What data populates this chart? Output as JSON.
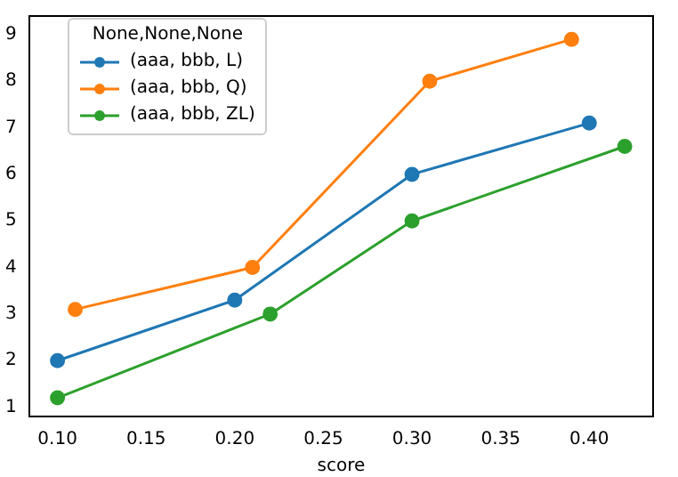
{
  "chart_data": {
    "type": "line",
    "xlabel": "score",
    "legend_title": "None,None,None",
    "legend": "top left",
    "marker": "circle",
    "grid": false,
    "xlim": [
      0.084,
      0.436
    ],
    "xticks": [
      {
        "value": 0.1,
        "label": "0.10"
      },
      {
        "value": 0.15,
        "label": "0.15"
      },
      {
        "value": 0.2,
        "label": "0.20"
      },
      {
        "value": 0.25,
        "label": "0.25"
      },
      {
        "value": 0.3,
        "label": "0.30"
      },
      {
        "value": 0.35,
        "label": "0.35"
      },
      {
        "value": 0.4,
        "label": "0.40"
      }
    ],
    "ylim": [
      0.8,
      9.4
    ],
    "yticks": [
      1,
      2,
      3,
      4,
      5,
      6,
      7,
      8,
      9
    ],
    "series": [
      {
        "name": "(aaa, bbb, L)",
        "color": "#1f77b4",
        "x": [
          0.1,
          0.2,
          0.3,
          0.4
        ],
        "values": [
          2.0,
          3.3,
          6.0,
          7.1
        ]
      },
      {
        "name": "(aaa, bbb, Q)",
        "color": "#ff7f0e",
        "x": [
          0.11,
          0.21,
          0.31,
          0.39
        ],
        "values": [
          3.1,
          4.0,
          8.0,
          8.9
        ]
      },
      {
        "name": "(aaa, bbb, ZL)",
        "color": "#2ca02c",
        "x": [
          0.1,
          0.22,
          0.3,
          0.42
        ],
        "values": [
          1.2,
          3.0,
          5.0,
          6.6
        ]
      }
    ]
  }
}
